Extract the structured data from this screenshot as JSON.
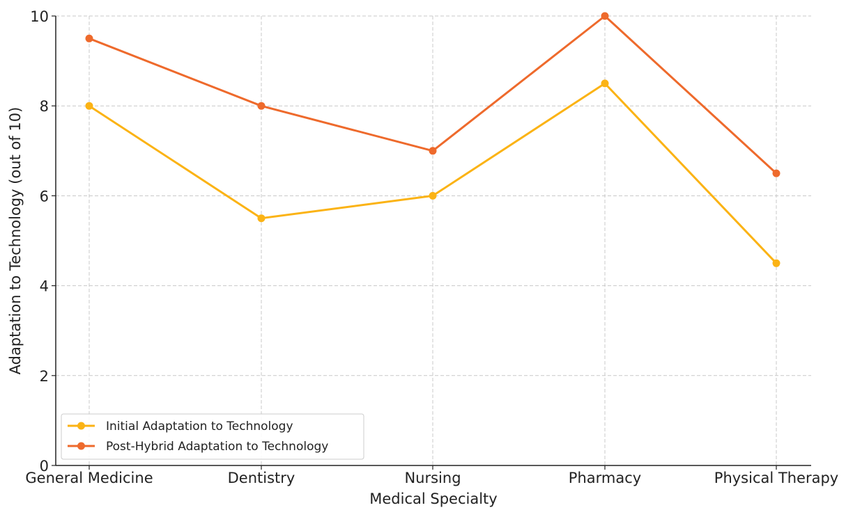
{
  "chart_data": {
    "type": "line",
    "title": "",
    "xlabel": "Medical Specialty",
    "ylabel": "Adaptation to Technology (out of 10)",
    "categories": [
      "General Medicine",
      "Dentistry",
      "Nursing",
      "Pharmacy",
      "Physical Therapy"
    ],
    "ylim": [
      0,
      10
    ],
    "yticks": [
      "0",
      "2",
      "4",
      "6",
      "8",
      "10"
    ],
    "grid": true,
    "legend_position": "lower-left",
    "series": [
      {
        "name": "Initial Adaptation to Technology",
        "color": "#FBB315",
        "values": [
          8,
          5.5,
          6,
          8.5,
          4.5
        ]
      },
      {
        "name": "Post-Hybrid Adaptation to Technology",
        "color": "#EE6A2C",
        "values": [
          9.5,
          8,
          7,
          10,
          6.5
        ]
      }
    ]
  }
}
